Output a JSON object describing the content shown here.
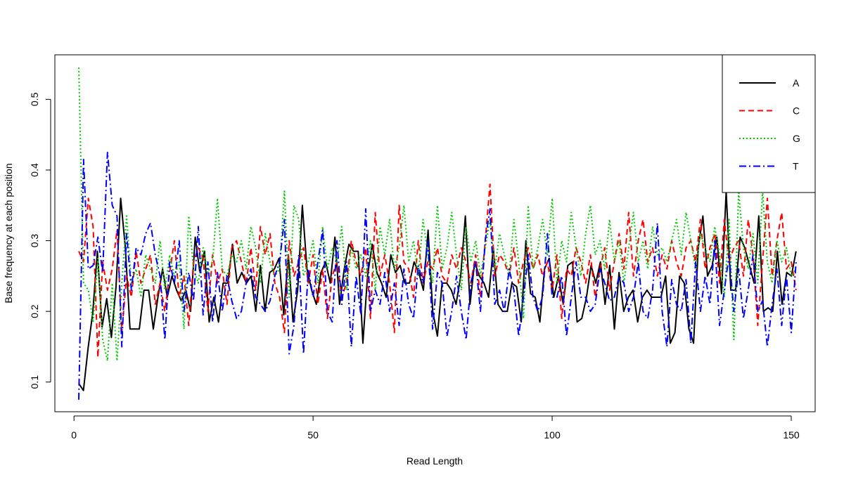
{
  "chart_data": {
    "type": "line",
    "title": "",
    "xlabel": "Read Length",
    "ylabel": "Base frequency at each position",
    "xlim": [
      -4,
      155
    ],
    "ylim": [
      0.058,
      0.563
    ],
    "x_ticks": [
      0,
      50,
      100,
      150
    ],
    "x_tick_labels": [
      "0",
      "50",
      "100",
      "150"
    ],
    "y_ticks": [
      0.1,
      0.2,
      0.3,
      0.4,
      0.5
    ],
    "y_tick_labels": [
      "0.1",
      "0.2",
      "0.3",
      "0.4",
      "0.5"
    ],
    "grid": false,
    "legend": "top-right",
    "x_start": 1,
    "x_end": 151,
    "series": [
      {
        "name": "A",
        "color": "#000000",
        "dash": "solid",
        "values": [
          0.098,
          0.088,
          0.148,
          0.198,
          0.285,
          0.178,
          0.218,
          0.163,
          0.235,
          0.36,
          0.29,
          0.175,
          0.175,
          0.175,
          0.23,
          0.23,
          0.175,
          0.22,
          0.26,
          0.22,
          0.25,
          0.23,
          0.215,
          0.23,
          0.2,
          0.305,
          0.255,
          0.285,
          0.185,
          0.22,
          0.185,
          0.24,
          0.24,
          0.295,
          0.24,
          0.255,
          0.24,
          0.25,
          0.2,
          0.265,
          0.2,
          0.255,
          0.26,
          0.275,
          0.195,
          0.28,
          0.185,
          0.23,
          0.35,
          0.26,
          0.23,
          0.21,
          0.255,
          0.27,
          0.24,
          0.305,
          0.21,
          0.26,
          0.295,
          0.285,
          0.285,
          0.155,
          0.25,
          0.295,
          0.255,
          0.24,
          0.22,
          0.28,
          0.255,
          0.265,
          0.24,
          0.24,
          0.27,
          0.255,
          0.23,
          0.315,
          0.2,
          0.165,
          0.24,
          0.24,
          0.23,
          0.21,
          0.25,
          0.335,
          0.21,
          0.27,
          0.25,
          0.24,
          0.22,
          0.29,
          0.21,
          0.2,
          0.2,
          0.24,
          0.235,
          0.185,
          0.3,
          0.225,
          0.22,
          0.185,
          0.26,
          0.275,
          0.22,
          0.25,
          0.21,
          0.265,
          0.27,
          0.185,
          0.19,
          0.22,
          0.265,
          0.24,
          0.27,
          0.21,
          0.265,
          0.175,
          0.255,
          0.2,
          0.22,
          0.23,
          0.185,
          0.22,
          0.23,
          0.22,
          0.22,
          0.22,
          0.25,
          0.155,
          0.17,
          0.25,
          0.24,
          0.175,
          0.155,
          0.29,
          0.335,
          0.25,
          0.265,
          0.305,
          0.225,
          0.37,
          0.23,
          0.23,
          0.305,
          0.29,
          0.265,
          0.24,
          0.335,
          0.2,
          0.205,
          0.2,
          0.285,
          0.21,
          0.255,
          0.25,
          0.285
        ]
      },
      {
        "name": "C",
        "color": "#ff0000",
        "dash": "8,5",
        "values": [
          0.285,
          0.27,
          0.36,
          0.32,
          0.135,
          0.27,
          0.23,
          0.26,
          0.315,
          0.17,
          0.25,
          0.22,
          0.285,
          0.24,
          0.26,
          0.28,
          0.21,
          0.24,
          0.2,
          0.255,
          0.3,
          0.22,
          0.25,
          0.18,
          0.27,
          0.29,
          0.275,
          0.2,
          0.28,
          0.24,
          0.26,
          0.21,
          0.29,
          0.3,
          0.27,
          0.24,
          0.29,
          0.23,
          0.32,
          0.28,
          0.31,
          0.24,
          0.22,
          0.17,
          0.3,
          0.25,
          0.27,
          0.29,
          0.24,
          0.28,
          0.21,
          0.26,
          0.19,
          0.25,
          0.27,
          0.22,
          0.24,
          0.3,
          0.27,
          0.25,
          0.29,
          0.19,
          0.34,
          0.25,
          0.28,
          0.24,
          0.17,
          0.35,
          0.27,
          0.26,
          0.22,
          0.3,
          0.24,
          0.27,
          0.26,
          0.29,
          0.25,
          0.24,
          0.28,
          0.26,
          0.29,
          0.27,
          0.24,
          0.28,
          0.22,
          0.3,
          0.38,
          0.25,
          0.28,
          0.27,
          0.25,
          0.29,
          0.24,
          0.27,
          0.29,
          0.26,
          0.28,
          0.25,
          0.27,
          0.23,
          0.28,
          0.19,
          0.26,
          0.25,
          0.29,
          0.27,
          0.24,
          0.28,
          0.22,
          0.26,
          0.29,
          0.23,
          0.27,
          0.31,
          0.26,
          0.34,
          0.25,
          0.3,
          0.33,
          0.27,
          0.29,
          0.25,
          0.28,
          0.26,
          0.3,
          0.27,
          0.25,
          0.29,
          0.3,
          0.27,
          0.33,
          0.26,
          0.29,
          0.31,
          0.24,
          0.33,
          0.27,
          0.29,
          0.3,
          0.25,
          0.33,
          0.28,
          0.18,
          0.27,
          0.36,
          0.25,
          0.3,
          0.34,
          0.26,
          0.27,
          0.23
        ]
      },
      {
        "name": "G",
        "color": "#00cd00",
        "dash": "2,3",
        "values": [
          0.545,
          0.24,
          0.23,
          0.185,
          0.275,
          0.16,
          0.13,
          0.24,
          0.13,
          0.24,
          0.335,
          0.24,
          0.26,
          0.22,
          0.28,
          0.26,
          0.24,
          0.3,
          0.23,
          0.28,
          0.25,
          0.27,
          0.175,
          0.335,
          0.26,
          0.24,
          0.29,
          0.255,
          0.27,
          0.36,
          0.26,
          0.25,
          0.28,
          0.27,
          0.3,
          0.26,
          0.32,
          0.29,
          0.24,
          0.31,
          0.27,
          0.25,
          0.26,
          0.37,
          0.22,
          0.35,
          0.33,
          0.25,
          0.27,
          0.3,
          0.24,
          0.32,
          0.26,
          0.29,
          0.27,
          0.32,
          0.23,
          0.29,
          0.26,
          0.28,
          0.25,
          0.3,
          0.23,
          0.32,
          0.28,
          0.33,
          0.26,
          0.29,
          0.35,
          0.27,
          0.3,
          0.25,
          0.33,
          0.28,
          0.24,
          0.35,
          0.26,
          0.29,
          0.34,
          0.28,
          0.23,
          0.32,
          0.27,
          0.3,
          0.25,
          0.29,
          0.33,
          0.26,
          0.31,
          0.28,
          0.25,
          0.33,
          0.27,
          0.19,
          0.35,
          0.26,
          0.29,
          0.33,
          0.28,
          0.36,
          0.24,
          0.3,
          0.27,
          0.34,
          0.29,
          0.25,
          0.31,
          0.35,
          0.28,
          0.3,
          0.26,
          0.33,
          0.27,
          0.3,
          0.24,
          0.29,
          0.34,
          0.27,
          0.3,
          0.26,
          0.32,
          0.28,
          0.29,
          0.27,
          0.3,
          0.33,
          0.28,
          0.34,
          0.3,
          0.26,
          0.31,
          0.29,
          0.27,
          0.32,
          0.28,
          0.22,
          0.33,
          0.16,
          0.37,
          0.29,
          0.26,
          0.31,
          0.24,
          0.37,
          0.27,
          0.24,
          0.3,
          0.27,
          0.29,
          0.25,
          0.26
        ]
      },
      {
        "name": "T",
        "color": "#0000ff",
        "dash": "10,4,2,4",
        "values": [
          0.075,
          0.415,
          0.26,
          0.265,
          0.305,
          0.255,
          0.425,
          0.35,
          0.335,
          0.15,
          0.31,
          0.23,
          0.29,
          0.28,
          0.31,
          0.325,
          0.28,
          0.25,
          0.16,
          0.27,
          0.24,
          0.3,
          0.2,
          0.255,
          0.215,
          0.32,
          0.195,
          0.27,
          0.185,
          0.255,
          0.2,
          0.25,
          0.215,
          0.19,
          0.2,
          0.24,
          0.26,
          0.22,
          0.21,
          0.2,
          0.215,
          0.25,
          0.27,
          0.33,
          0.14,
          0.18,
          0.28,
          0.14,
          0.26,
          0.22,
          0.27,
          0.315,
          0.2,
          0.185,
          0.3,
          0.21,
          0.27,
          0.15,
          0.25,
          0.195,
          0.345,
          0.2,
          0.23,
          0.21,
          0.255,
          0.2,
          0.24,
          0.18,
          0.26,
          0.21,
          0.19,
          0.265,
          0.24,
          0.3,
          0.175,
          0.255,
          0.24,
          0.165,
          0.2,
          0.25,
          0.2,
          0.16,
          0.24,
          0.27,
          0.2,
          0.3,
          0.345,
          0.21,
          0.23,
          0.2,
          0.26,
          0.23,
          0.165,
          0.22,
          0.28,
          0.22,
          0.2,
          0.22,
          0.31,
          0.22,
          0.22,
          0.25,
          0.165,
          0.22,
          0.27,
          0.22,
          0.22,
          0.2,
          0.21,
          0.26,
          0.24,
          0.215,
          0.22,
          0.25,
          0.24,
          0.2,
          0.22,
          0.27,
          0.2,
          0.19,
          0.23,
          0.325,
          0.2,
          0.15,
          0.245,
          0.21,
          0.2,
          0.245,
          0.155,
          0.27,
          0.2,
          0.25,
          0.21,
          0.3,
          0.18,
          0.23,
          0.28,
          0.2,
          0.26,
          0.19,
          0.23,
          0.28,
          0.2,
          0.215,
          0.15,
          0.21,
          0.26,
          0.18,
          0.25,
          0.17,
          0.27
        ]
      }
    ]
  }
}
